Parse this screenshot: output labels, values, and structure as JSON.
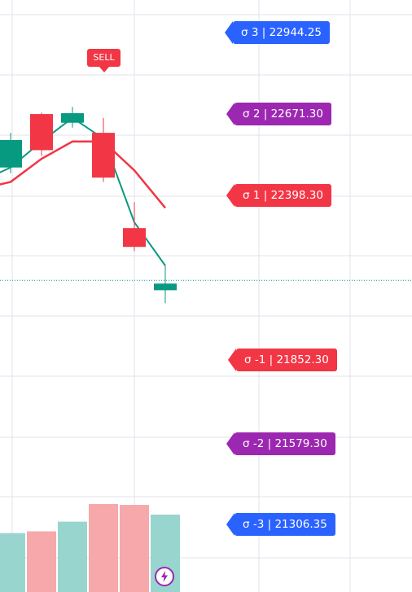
{
  "chart_data": {
    "type": "candlestick",
    "y_range": [
      21050,
      23100
    ],
    "candles": [
      {
        "open": 22520,
        "close": 22615,
        "high": 22640,
        "low": 22500,
        "color": "green"
      },
      {
        "open": 22705,
        "close": 22580,
        "high": 22710,
        "low": 22560,
        "color": "red"
      },
      {
        "open": 22675,
        "close": 22708,
        "high": 22730,
        "low": 22658,
        "color": "green"
      },
      {
        "open": 22640,
        "close": 22485,
        "high": 22692,
        "low": 22470,
        "color": "red"
      },
      {
        "open": 22310,
        "close": 22245,
        "high": 22400,
        "low": 22230,
        "color": "red"
      },
      {
        "open": 22095,
        "close": 22118,
        "high": 22180,
        "low": 22050,
        "color": "green"
      }
    ],
    "green_line": [
      22520,
      22610,
      22692,
      22620,
      22330,
      22180
    ],
    "red_line": [
      22470,
      22550,
      22610,
      22610,
      22510,
      22380
    ],
    "volume_levels": [
      0.67,
      0.69,
      0.8,
      1.0,
      0.99,
      0.88
    ],
    "sigma_levels": [
      {
        "label": "σ 3 | 22944.25",
        "color": "#2962ff"
      },
      {
        "label": "σ 2 | 22671.30",
        "color": "#9c27b0"
      },
      {
        "label": "σ 1 | 22398.30",
        "color": "#f23645"
      },
      {
        "label": "σ -1 | 21852.30",
        "color": "#f23645"
      },
      {
        "label": "σ -2 | 21579.30",
        "color": "#9c27b0"
      },
      {
        "label": "σ -3 | 21306.35",
        "color": "#2962ff"
      }
    ],
    "signal": {
      "label": "SELL",
      "color": "#f23645"
    },
    "colors": {
      "up": "#089981",
      "down": "#f23645",
      "green_line": "#089981",
      "red_line": "#f23645",
      "vol_up": "#98d5ce",
      "vol_down": "#f6a8ab",
      "grid": "#e0e3eb",
      "price_line": "#089981"
    }
  }
}
